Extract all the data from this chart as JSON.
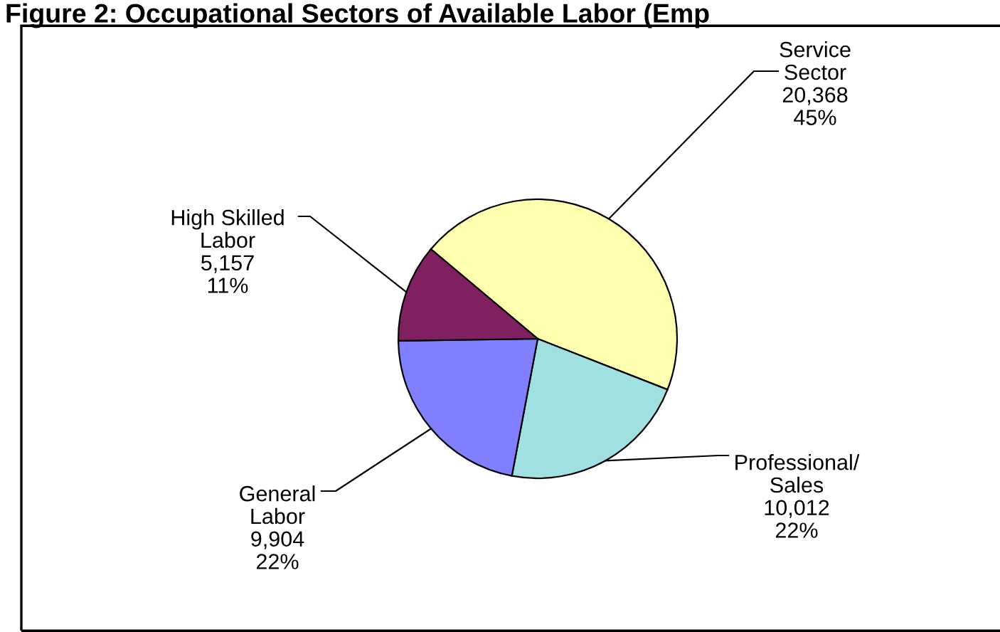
{
  "chart_data": {
    "type": "pie",
    "title": "Figure 2: Occupational Sectors of Available Labor (Emp",
    "categories": [
      "Service\nSector",
      "Professional/\nSales",
      "General\nLabor",
      "High Skilled\nLabor"
    ],
    "values": [
      20368,
      10012,
      9904,
      5157
    ],
    "value_labels": [
      "20,368\n45%",
      "10,012\n22%",
      "9,904\n22%",
      "5,157\n11%"
    ],
    "colors": [
      "#ffffb0",
      "#a0e0e0",
      "#8080ff",
      "#802060"
    ],
    "legend": false
  }
}
